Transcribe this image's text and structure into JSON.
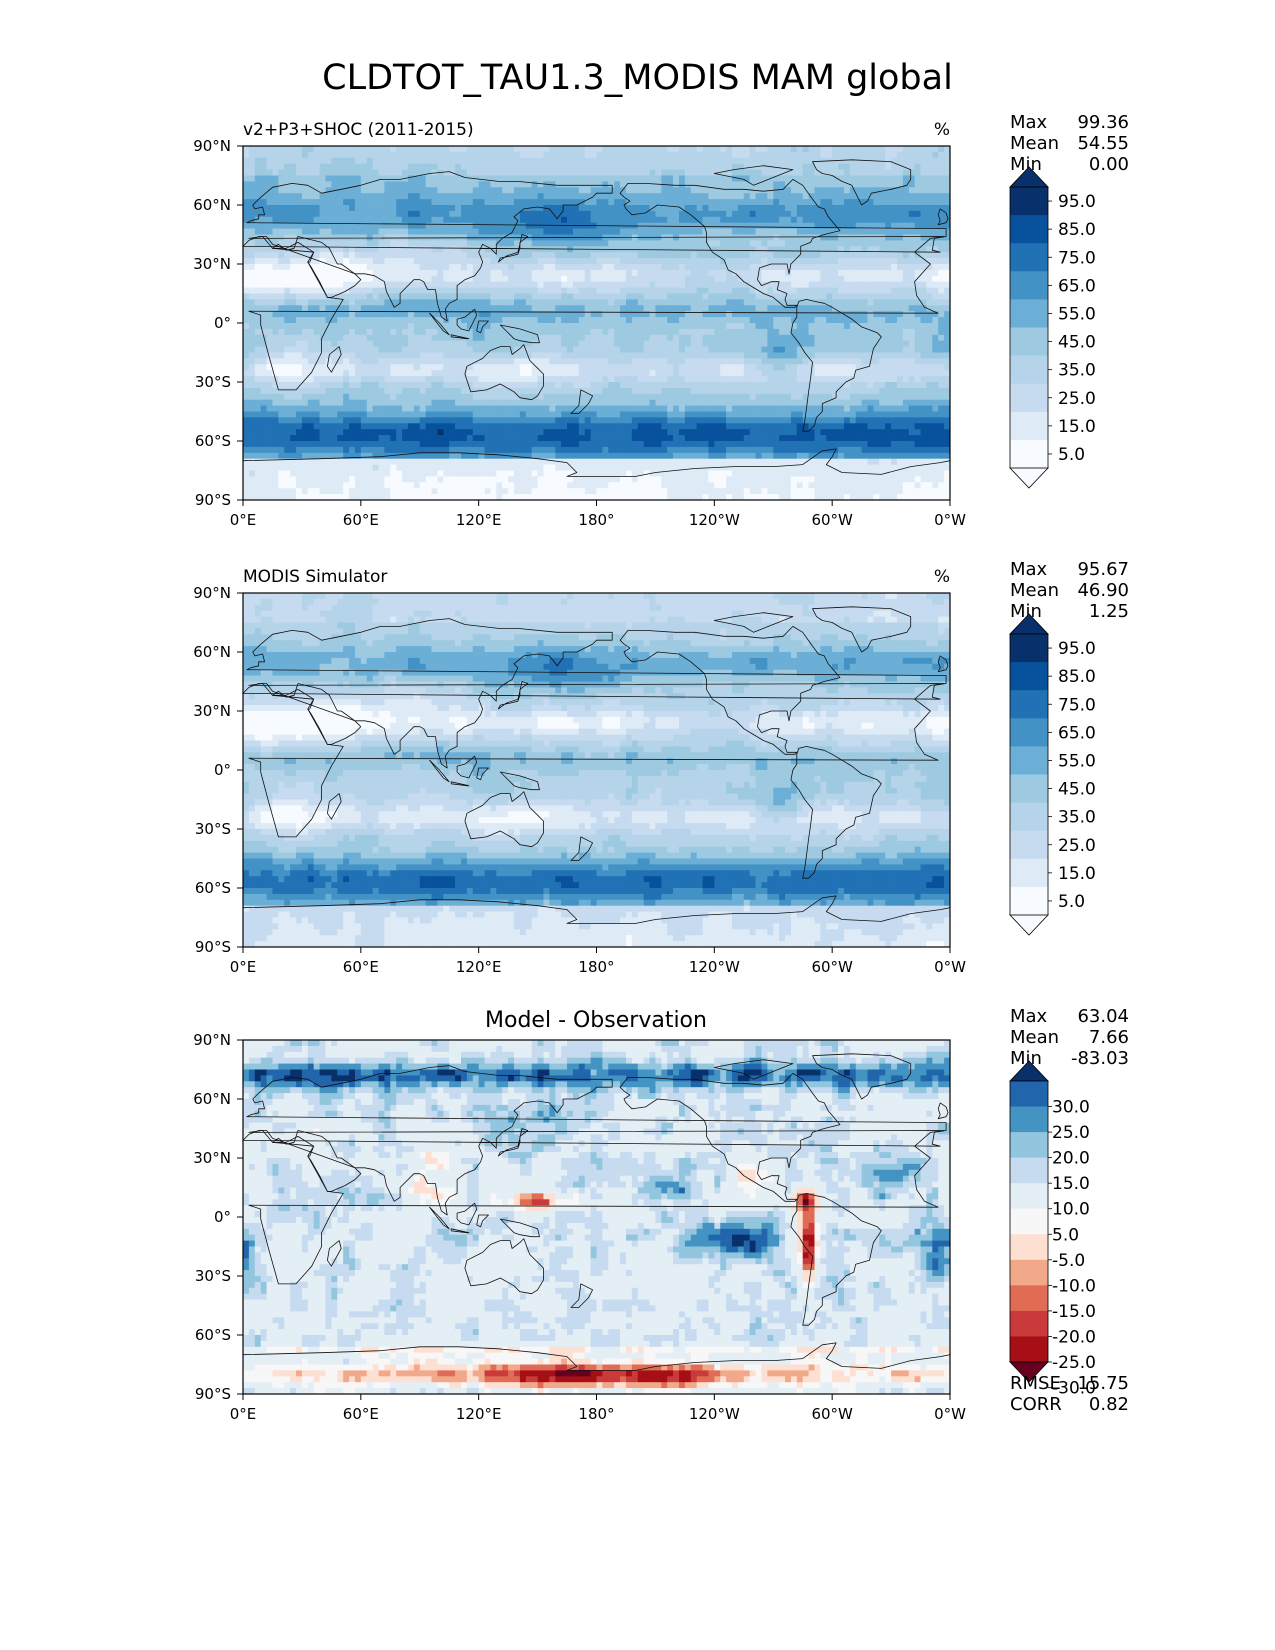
{
  "figure": {
    "title": "CLDTOT_TAU1.3_MODIS MAM global"
  },
  "colors": {
    "blues": [
      "#f7fbff",
      "#deebf7",
      "#c6dbef",
      "#b6d4e9",
      "#9ecae1",
      "#6baed6",
      "#4292c6",
      "#2171b5",
      "#08519c",
      "#08306b"
    ],
    "diff": [
      "#67001f",
      "#a50f15",
      "#cb3a3a",
      "#e06c55",
      "#f2a98a",
      "#fde0d2",
      "#f7f7f7",
      "#e4eef5",
      "#c6dbef",
      "#92c5de",
      "#4393c3",
      "#2166ac",
      "#08306b"
    ]
  },
  "chart_data": [
    {
      "type": "heatmap",
      "panel": "test",
      "left_title": "v2+P3+SHOC (2011-2015)",
      "units": "%",
      "xticks": [
        "0°E",
        "60°E",
        "120°E",
        "180°",
        "120°W",
        "60°W",
        "0°W"
      ],
      "yticks": [
        "90°N",
        "60°N",
        "30°N",
        "0°",
        "30°S",
        "60°S",
        "90°S"
      ],
      "xlim": [
        0,
        360
      ],
      "ylim": [
        -90,
        90
      ],
      "stats": [
        {
          "label": "Max",
          "value": "99.36"
        },
        {
          "label": "Mean",
          "value": "54.55"
        },
        {
          "label": "Min",
          "value": "0.00"
        }
      ],
      "colorbar_levels": [
        0,
        10,
        20,
        30,
        40,
        50,
        60,
        70,
        80,
        90,
        100
      ],
      "colorbar_labels": [
        "95.0",
        "85.0",
        "75.0",
        "65.0",
        "55.0",
        "45.0",
        "35.0",
        "25.0",
        "15.0",
        "5.0"
      ]
    },
    {
      "type": "heatmap",
      "panel": "reference",
      "left_title": "MODIS Simulator",
      "units": "%",
      "xticks": [
        "0°E",
        "60°E",
        "120°E",
        "180°",
        "120°W",
        "60°W",
        "0°W"
      ],
      "yticks": [
        "90°N",
        "60°N",
        "30°N",
        "0°",
        "30°S",
        "60°S",
        "90°S"
      ],
      "xlim": [
        0,
        360
      ],
      "ylim": [
        -90,
        90
      ],
      "stats": [
        {
          "label": "Max",
          "value": "95.67"
        },
        {
          "label": "Mean",
          "value": "46.90"
        },
        {
          "label": "Min",
          "value": "1.25"
        }
      ],
      "colorbar_levels": [
        0,
        10,
        20,
        30,
        40,
        50,
        60,
        70,
        80,
        90,
        100
      ],
      "colorbar_labels": [
        "95.0",
        "85.0",
        "75.0",
        "65.0",
        "55.0",
        "45.0",
        "35.0",
        "25.0",
        "15.0",
        "5.0"
      ]
    },
    {
      "type": "heatmap",
      "panel": "difference",
      "center_title": "Model - Observation",
      "xticks": [
        "0°E",
        "60°E",
        "120°E",
        "180°",
        "120°W",
        "60°W",
        "0°W"
      ],
      "yticks": [
        "90°N",
        "60°N",
        "30°N",
        "0°",
        "30°S",
        "60°S",
        "90°S"
      ],
      "xlim": [
        0,
        360
      ],
      "ylim": [
        -90,
        90
      ],
      "stats": [
        {
          "label": "Max",
          "value": "63.04"
        },
        {
          "label": "Mean",
          "value": "7.66"
        },
        {
          "label": "Min",
          "value": "-83.03"
        }
      ],
      "colorbar_levels": [
        -35,
        -30,
        -25,
        -20,
        -15,
        -10,
        -5,
        5,
        10,
        15,
        20,
        25,
        30,
        35
      ],
      "colorbar_labels": [
        "30.0",
        "25.0",
        "20.0",
        "15.0",
        "10.0",
        "5.0",
        "-5.0",
        "-10.0",
        "-15.0",
        "-20.0",
        "-25.0",
        "-30.0"
      ],
      "metrics": [
        {
          "label": "RMSE",
          "value": "15.75"
        },
        {
          "label": "CORR",
          "value": "0.82"
        }
      ]
    }
  ]
}
